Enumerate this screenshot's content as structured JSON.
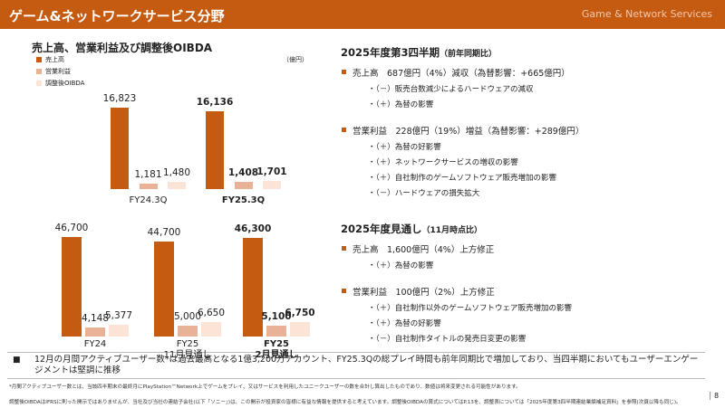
{
  "header": {
    "title": "ゲーム&ネットワークサービス分野",
    "subtitle": "Game & Network Services"
  },
  "chart_data": [
    {
      "type": "bar",
      "title": "売上高、営業利益及び調整後OIBDA",
      "unit": "（億円）",
      "categories": [
        "FY24.3Q",
        "FY25.3Q"
      ],
      "series": [
        {
          "name": "売上高",
          "color": "#c55a11",
          "values": [
            16823,
            16136
          ],
          "value_labels": [
            "16,823",
            "16,136"
          ]
        },
        {
          "name": "営業利益",
          "color": "#e9b196",
          "values": [
            1181,
            1408
          ],
          "value_labels": [
            "1,181",
            "1,408"
          ]
        },
        {
          "name": "調整後OIBDA",
          "color": "#fbe3d6",
          "values": [
            1480,
            1701
          ],
          "value_labels": [
            "1,480",
            "1,701"
          ]
        }
      ]
    },
    {
      "type": "bar",
      "categories": [
        "FY24",
        "FY25\n11月見通し",
        "FY25\n2月見通し"
      ],
      "series": [
        {
          "color": "#c55a11",
          "values": [
            46700,
            44700,
            46300
          ],
          "value_labels": [
            "46,700",
            "44,700",
            "46,300"
          ]
        },
        {
          "color": "#e9b196",
          "values": [
            4148,
            5000,
            5100
          ],
          "value_labels": [
            "4,148",
            "5,000",
            "5,100"
          ]
        },
        {
          "color": "#fbe3d6",
          "values": [
            5377,
            6650,
            6750
          ],
          "value_labels": [
            "5,377",
            "6,650",
            "6,750"
          ]
        }
      ]
    }
  ],
  "sections": [
    {
      "title": "2025年度第3四半期",
      "note": "（前年同期比）",
      "items": [
        {
          "text": "売上高　687億円（4%）減収（為替影響：+665億円）",
          "sub": [
            "・（－）販売台数減少によるハードウェアの減収",
            "・（＋）為替の影響"
          ]
        },
        {
          "text": "営業利益　228億円（19%）増益（為替影響：+289億円）",
          "sub": [
            "・（＋）為替の好影響",
            "・（＋）ネットワークサービスの増収の影響",
            "・（＋）自社制作のゲームソフトウェア販売増加の影響",
            "・（－）ハードウェアの損失拡大"
          ]
        }
      ]
    },
    {
      "title": "2025年度見通し",
      "note": "（11月時点比）",
      "items": [
        {
          "text": "売上高　1,600億円（4%）上方修正",
          "sub": [
            "・（＋）為替の影響"
          ]
        },
        {
          "text": "営業利益　100億円（2%）上方修正",
          "sub": [
            "・（＋）自社制作以外のゲームソフトウェア販売増加の影響",
            "・（＋）為替の好影響",
            "・（－）自社制作タイトルの発売日変更の影響"
          ]
        }
      ]
    }
  ],
  "highlight": "12月の月間アクティブユーザー数*は過去最高となる1億3,200万アカウント、FY25.3Qの総プレイ時間も前年同期比で増加しており、当四半期においてもユーザーエンゲージメントは堅調に推移",
  "footnotes": [
    "*月間アクティブユーザー数とは、当該四半期末の最終月にPlayStation™Network上でゲームをプレイ、又はサービスを利用したユニークユーザーの数を合計し算出したものであり、数値は将来変更される可能性があります。",
    "調整後OIBDAはIFRSに則った開示ではありませんが、当社及び当社の連結子会社(以下「ソニー」)は、この開示が投資家の皆様に有益な情報を提供すると考えています。調整後OIBDAの算式についてはP.13を、調整表については「2025年度第3四半期連結業績補足資料」を参照(次頁以降も同じ)。"
  ],
  "page": 8
}
